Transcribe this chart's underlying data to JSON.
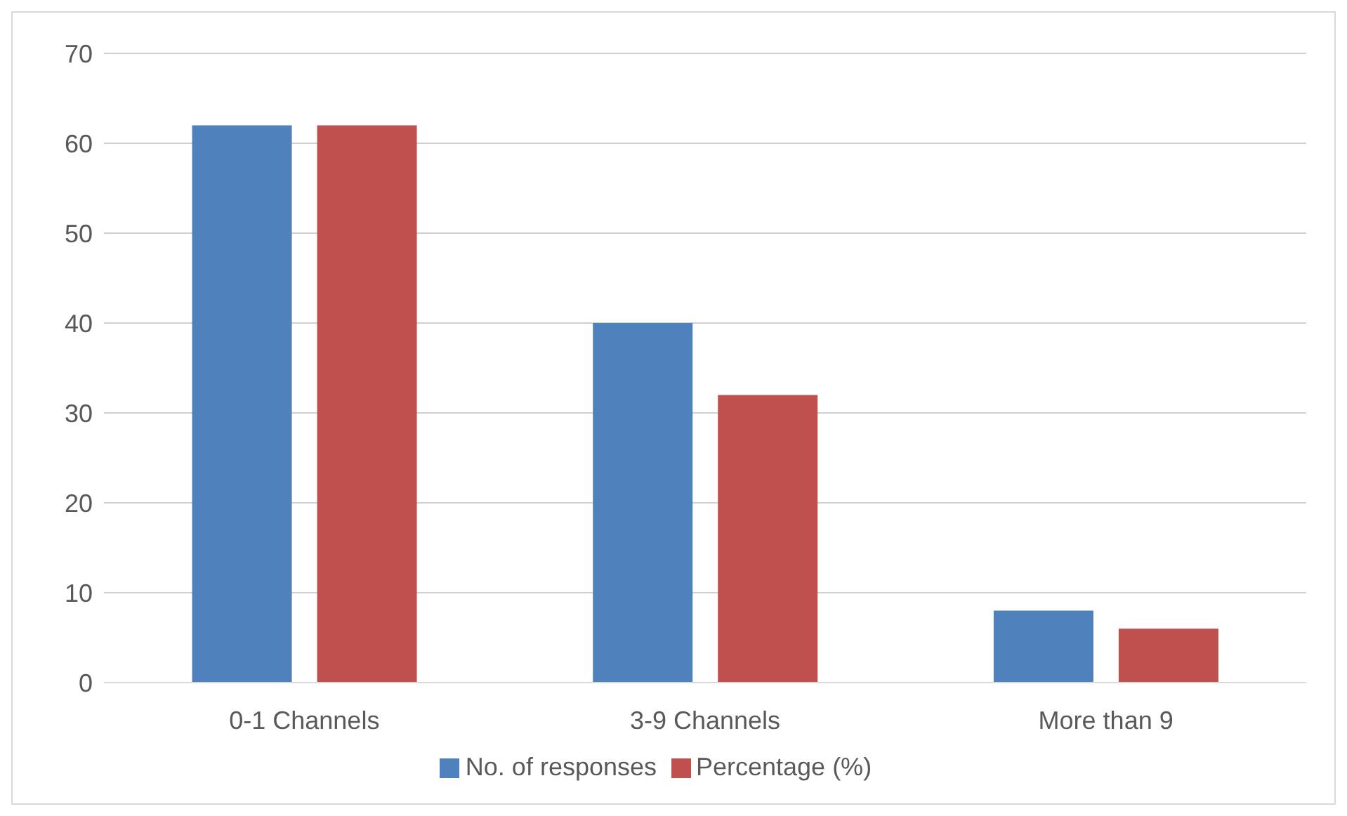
{
  "chart_data": {
    "type": "bar",
    "categories": [
      "0-1 Channels",
      "3-9 Channels",
      "More than 9"
    ],
    "series": [
      {
        "name": "No. of responses",
        "color": "#4f81bd",
        "values": [
          62,
          40,
          8
        ]
      },
      {
        "name": "Percentage (%)",
        "color": "#c0504d",
        "values": [
          62,
          32,
          6
        ]
      }
    ],
    "ylim": [
      0,
      70
    ],
    "yticks": [
      0,
      10,
      20,
      30,
      40,
      50,
      60,
      70
    ],
    "grid": "y",
    "legend": "bottom"
  }
}
